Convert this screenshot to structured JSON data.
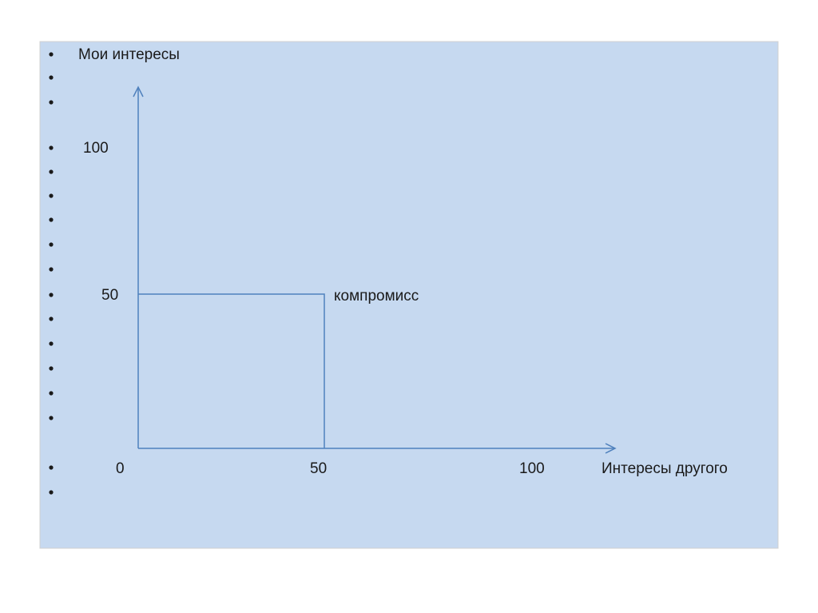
{
  "slide": {
    "y_axis_label": "Мои интересы",
    "y_labels": [
      "100",
      "50"
    ],
    "point_label": "компромисс",
    "x_labels": [
      "0",
      "50",
      "100"
    ],
    "x_axis_label": "Интересы другого"
  }
}
